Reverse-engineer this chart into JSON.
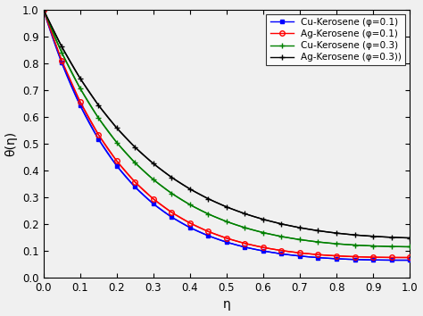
{
  "title": "",
  "xlabel": "η",
  "ylabel": "θ(η)",
  "xlim": [
    0,
    1
  ],
  "ylim": [
    0,
    1
  ],
  "xticks": [
    0,
    0.1,
    0.2,
    0.3,
    0.4,
    0.5,
    0.6,
    0.7,
    0.8,
    0.9,
    1
  ],
  "yticks": [
    0,
    0.1,
    0.2,
    0.3,
    0.4,
    0.5,
    0.6,
    0.7,
    0.8,
    0.9,
    1
  ],
  "series": [
    {
      "label": "Cu-Kerosene (φ=0.1)",
      "color": "blue",
      "marker": "s",
      "markersize": 3,
      "markerfacecolor": "blue",
      "markeredgecolor": "blue",
      "linestyle": "-",
      "curve_params": [
        4.5,
        0.065
      ]
    },
    {
      "label": "Ag-Kerosene (φ=0.1)",
      "color": "red",
      "marker": "o",
      "markersize": 4,
      "markerfacecolor": "none",
      "markeredgecolor": "red",
      "linestyle": "-",
      "curve_params": [
        4.3,
        0.075
      ]
    },
    {
      "label": "Cu-Kerosene (φ=0.3)",
      "color": "green",
      "marker": "+",
      "markersize": 5,
      "markerfacecolor": "green",
      "markeredgecolor": "green",
      "linestyle": "-",
      "curve_params": [
        3.6,
        0.115
      ]
    },
    {
      "label": "Ag-Kerosene (φ=0.3))",
      "color": "black",
      "marker": "+",
      "markersize": 5,
      "markerfacecolor": "black",
      "markeredgecolor": "black",
      "linestyle": "-",
      "curve_params": [
        3.1,
        0.148
      ]
    }
  ],
  "background_color": "#f0f0f0",
  "legend_loc": "upper right",
  "legend_fontsize": 7.5,
  "axis_label_fontsize": 10,
  "tick_fontsize": 8.5,
  "n_markers": 21
}
